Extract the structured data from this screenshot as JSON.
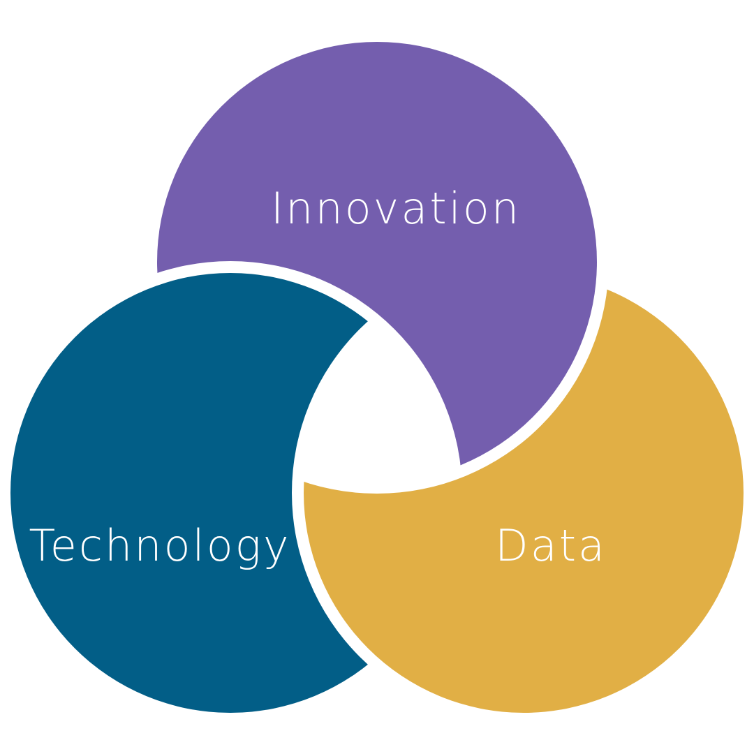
{
  "diagram": {
    "type": "three-circle-venn",
    "background_color": "#ffffff",
    "gap_color": "#ffffff",
    "circles": [
      {
        "key": "innovation",
        "label": "Innovation",
        "color": "#745eae"
      },
      {
        "key": "technology",
        "label": "Technology",
        "color": "#025e87"
      },
      {
        "key": "data",
        "label": "Data",
        "color": "#e1af45"
      }
    ]
  }
}
